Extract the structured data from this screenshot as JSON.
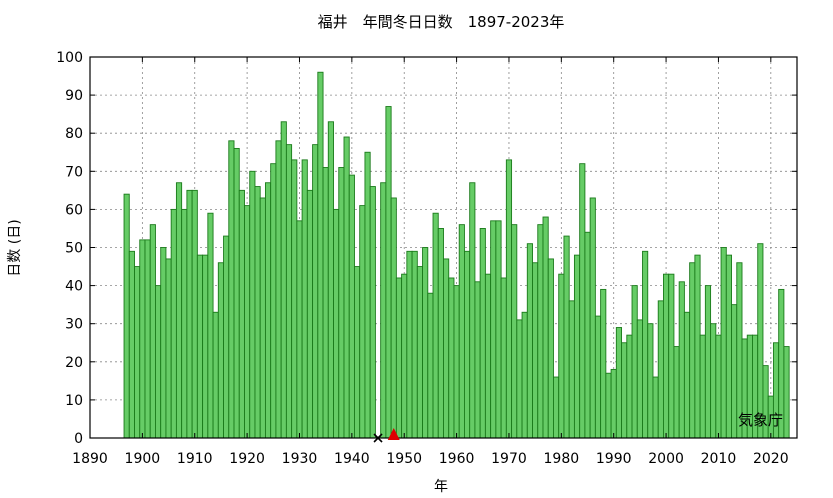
{
  "chart_data": {
    "type": "bar",
    "title": "福井　年間冬日日数　1897-2023年",
    "xlabel": "年",
    "ylabel": "日数 (日)",
    "source_label": "気象庁",
    "xlim": [
      1890,
      2025
    ],
    "ylim": [
      0,
      100
    ],
    "x_ticks": [
      1890,
      1900,
      1910,
      1920,
      1930,
      1940,
      1950,
      1960,
      1970,
      1980,
      1990,
      2000,
      2010,
      2020
    ],
    "y_ticks": [
      0,
      10,
      20,
      30,
      40,
      50,
      60,
      70,
      80,
      90,
      100
    ],
    "grid": true,
    "bar_color": "#66cc66",
    "bar_edge_color": "#1a7a1a",
    "start_year": 1897,
    "years": [
      1897,
      1898,
      1899,
      1900,
      1901,
      1902,
      1903,
      1904,
      1905,
      1906,
      1907,
      1908,
      1909,
      1910,
      1911,
      1912,
      1913,
      1914,
      1915,
      1916,
      1917,
      1918,
      1919,
      1920,
      1921,
      1922,
      1923,
      1924,
      1925,
      1926,
      1927,
      1928,
      1929,
      1930,
      1931,
      1932,
      1933,
      1934,
      1935,
      1936,
      1937,
      1938,
      1939,
      1940,
      1941,
      1942,
      1943,
      1944,
      1945,
      1946,
      1947,
      1948,
      1949,
      1950,
      1951,
      1952,
      1953,
      1954,
      1955,
      1956,
      1957,
      1958,
      1959,
      1960,
      1961,
      1962,
      1963,
      1964,
      1965,
      1966,
      1967,
      1968,
      1969,
      1970,
      1971,
      1972,
      1973,
      1974,
      1975,
      1976,
      1977,
      1978,
      1979,
      1980,
      1981,
      1982,
      1983,
      1984,
      1985,
      1986,
      1987,
      1988,
      1989,
      1990,
      1991,
      1992,
      1993,
      1994,
      1995,
      1996,
      1997,
      1998,
      1999,
      2000,
      2001,
      2002,
      2003,
      2004,
      2005,
      2006,
      2007,
      2008,
      2009,
      2010,
      2011,
      2012,
      2013,
      2014,
      2015,
      2016,
      2017,
      2018,
      2019,
      2020,
      2021,
      2022,
      2023
    ],
    "values": [
      64,
      49,
      45,
      52,
      52,
      56,
      40,
      50,
      47,
      60,
      67,
      60,
      65,
      65,
      48,
      48,
      59,
      33,
      46,
      53,
      78,
      76,
      65,
      61,
      70,
      66,
      63,
      67,
      72,
      78,
      83,
      77,
      73,
      57,
      73,
      65,
      77,
      96,
      71,
      83,
      60,
      71,
      79,
      69,
      45,
      61,
      75,
      66,
      null,
      67,
      87,
      63,
      42,
      43,
      49,
      49,
      45,
      50,
      38,
      59,
      55,
      47,
      42,
      40,
      56,
      49,
      67,
      41,
      55,
      43,
      57,
      57,
      42,
      73,
      56,
      31,
      33,
      51,
      46,
      56,
      58,
      47,
      16,
      43,
      53,
      36,
      48,
      72,
      54,
      63,
      32,
      39,
      17,
      18,
      29,
      25,
      27,
      40,
      31,
      49,
      30,
      16,
      36,
      43,
      43,
      24,
      41,
      33,
      46,
      48,
      27,
      40,
      30,
      27,
      50,
      48,
      35,
      46,
      26,
      27,
      27,
      51,
      19,
      11,
      25,
      39,
      24
    ],
    "markers": [
      {
        "year": 1945,
        "symbol": "x",
        "color": "#000000",
        "value": 0
      },
      {
        "year": 1948,
        "symbol": "triangle",
        "color": "#dd0000",
        "value": 0
      }
    ]
  }
}
